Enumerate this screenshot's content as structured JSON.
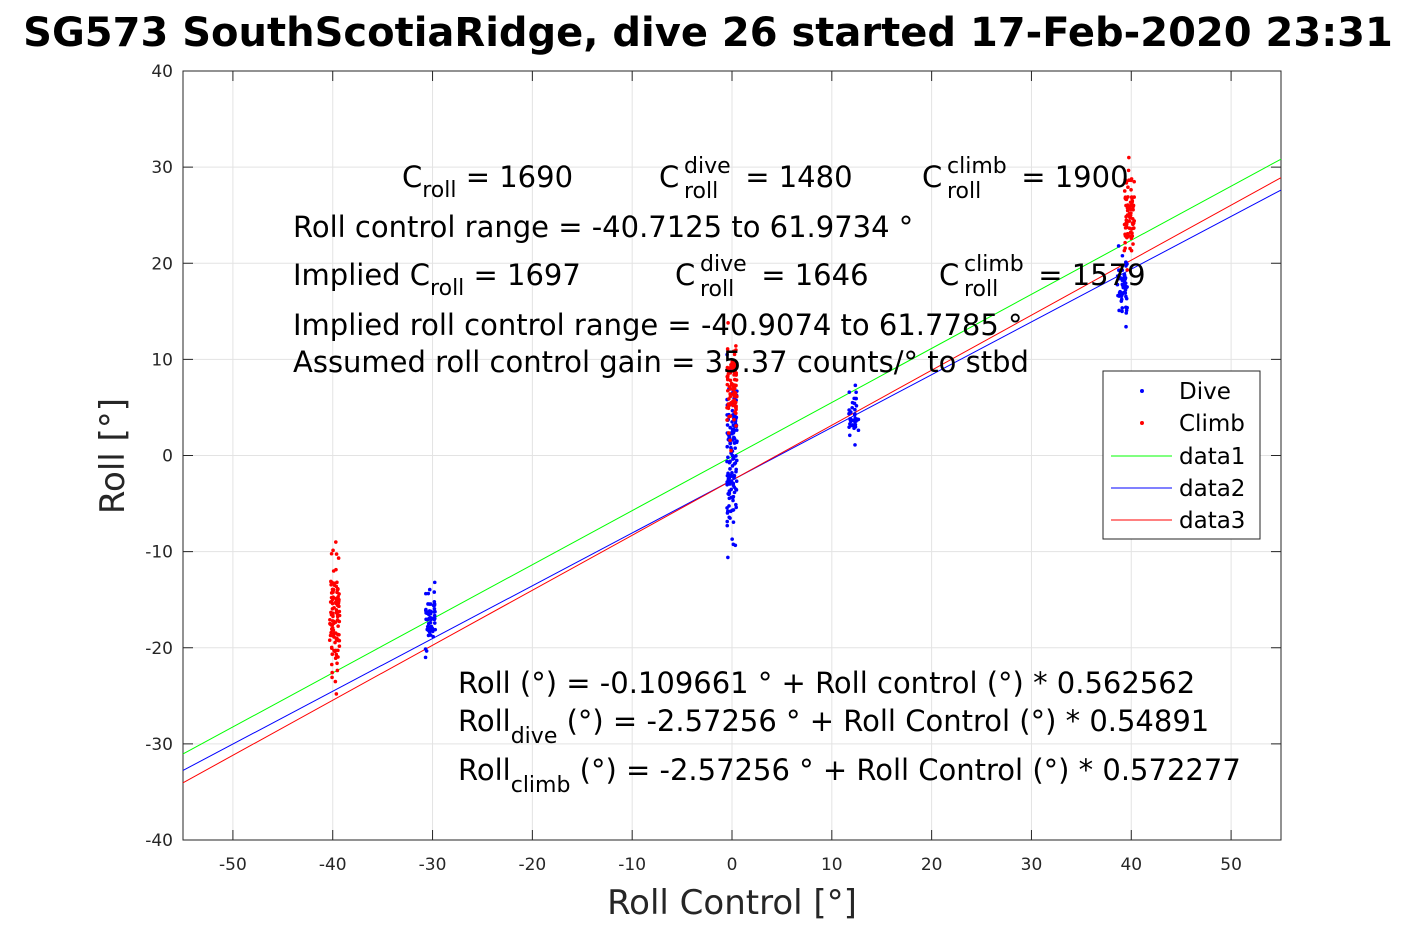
{
  "chart_data": {
    "type": "scatter",
    "title": "SG573 SouthScotiaRidge, dive 26 started 17-Feb-2020 23:31",
    "xlabel": "Roll Control [°]",
    "ylabel": "Roll [°]",
    "xlim": [
      -55,
      55
    ],
    "ylim": [
      -40,
      40
    ],
    "xticks": [
      -50,
      -40,
      -30,
      -20,
      -10,
      0,
      10,
      20,
      30,
      40,
      50
    ],
    "yticks": [
      -40,
      -30,
      -20,
      -10,
      0,
      10,
      20,
      30,
      40
    ],
    "grid": true,
    "legend_position": "right",
    "colors": {
      "dive": "#0000ff",
      "climb": "#ff0000",
      "data1": "#00ff00",
      "data2": "#0000ff",
      "data3": "#ff0000"
    },
    "series": [
      {
        "name": "Dive",
        "kind": "points",
        "color": "#0000ff",
        "clusters": [
          {
            "x": -30.2,
            "y_min": -21,
            "y_max": -13.2
          },
          {
            "x": 0,
            "y_min": -10.6,
            "y_max": 10.5
          },
          {
            "x": 12.2,
            "y_min": 1.1,
            "y_max": 7.3
          },
          {
            "x": 39.1,
            "y_min": 13.4,
            "y_max": 21.8
          }
        ]
      },
      {
        "name": "Climb",
        "kind": "points",
        "color": "#ff0000",
        "clusters": [
          {
            "x": -39.8,
            "y_min": -24.8,
            "y_max": -9.0
          },
          {
            "x": 0,
            "y_min": 0.5,
            "y_max": 13.8
          },
          {
            "x": 39.8,
            "y_min": 19.3,
            "y_max": 31
          }
        ]
      },
      {
        "name": "data1",
        "kind": "line",
        "color": "#00ff00",
        "intercept": -0.109661,
        "slope": 0.562562
      },
      {
        "name": "data2",
        "kind": "line",
        "color": "#0000ff",
        "intercept": -2.57256,
        "slope": 0.54891
      },
      {
        "name": "data3",
        "kind": "line",
        "color": "#ff0000",
        "intercept": -2.57256,
        "slope": 0.572277
      }
    ]
  },
  "annotations": {
    "c_roll": {
      "base": "C",
      "sub": "roll",
      "value": " = 1690"
    },
    "c_roll_dive": {
      "base": "C",
      "sup": "dive",
      "sub": "roll",
      "value": " = 1480"
    },
    "c_roll_climb": {
      "base": "C",
      "sup": "climb",
      "sub": "roll",
      "value": " = 1900"
    },
    "roll_range": "Roll control range = -40.7125 to 61.9734 °",
    "implied_prefix": "Implied C",
    "implied_sub": "roll",
    "implied_value": " = 1697",
    "implied_dive": {
      "base": "C",
      "sup": "dive",
      "sub": "roll",
      "value": " = 1646"
    },
    "implied_climb": {
      "base": "C",
      "sup": "climb",
      "sub": "roll",
      "value": " = 1579"
    },
    "implied_range": "Implied roll control range = -40.9074 to 61.7785 °",
    "gain": "Assumed roll control gain = 35.37 counts/° to stbd",
    "fit_all": "Roll (°) = -0.109661 ° + Roll control (°) * 0.562562",
    "fit_dive_base": "Roll",
    "fit_dive_sub": "dive",
    "fit_dive_rest": " (°) = -2.57256 ° + Roll Control (°) * 0.54891",
    "fit_climb_base": "Roll",
    "fit_climb_sub": "climb",
    "fit_climb_rest": " (°) = -2.57256 ° + Roll Control (°) * 0.572277"
  }
}
